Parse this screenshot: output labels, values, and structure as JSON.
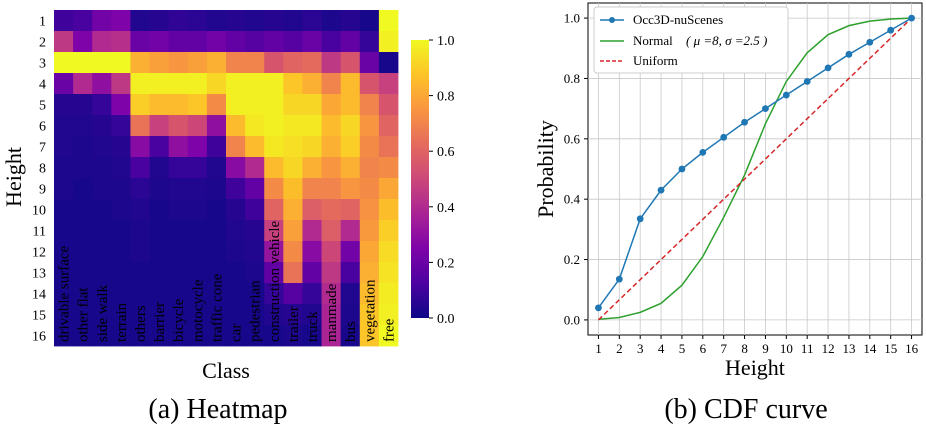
{
  "chart_data": [
    {
      "type": "heatmap",
      "caption": "(a) Heatmap",
      "xlabel": "Class",
      "ylabel": "Height",
      "y_categories": [
        "1",
        "2",
        "3",
        "4",
        "5",
        "6",
        "7",
        "8",
        "9",
        "10",
        "11",
        "12",
        "13",
        "14",
        "15",
        "16"
      ],
      "x_categories": [
        "drivable surface",
        "other flat",
        "side walk",
        "terrain",
        "others",
        "barrier",
        "bicycle",
        "motocycle",
        "traffic cone",
        "car",
        "pedestrian",
        "construction vehicle",
        "trailer",
        "truck",
        "manmade",
        "bus",
        "vegetation",
        "free"
      ],
      "colorbar": {
        "min": 0.0,
        "max": 1.0,
        "ticks": [
          "0.0",
          "0.2",
          "0.4",
          "0.6",
          "0.8",
          "1.0"
        ],
        "colormap": "plasma"
      },
      "values": [
        [
          0.1,
          0.12,
          0.22,
          0.25,
          0.04,
          0.05,
          0.07,
          0.06,
          0.04,
          0.05,
          0.04,
          0.05,
          0.04,
          0.06,
          0.03,
          0.05,
          0.02,
          1.0
        ],
        [
          0.45,
          0.25,
          0.4,
          0.42,
          0.2,
          0.22,
          0.18,
          0.18,
          0.22,
          0.18,
          0.15,
          0.18,
          0.15,
          0.2,
          0.12,
          0.18,
          0.08,
          0.98
        ],
        [
          1.0,
          1.0,
          1.0,
          1.0,
          0.82,
          0.78,
          0.75,
          0.78,
          0.82,
          0.7,
          0.7,
          0.55,
          0.6,
          0.62,
          0.45,
          0.55,
          0.2,
          0.02
        ],
        [
          0.2,
          0.4,
          0.3,
          0.45,
          0.98,
          0.98,
          0.98,
          0.98,
          0.92,
          0.98,
          0.98,
          0.98,
          0.88,
          0.82,
          0.7,
          0.85,
          0.55,
          0.48
        ],
        [
          0.05,
          0.05,
          0.08,
          0.25,
          0.9,
          0.85,
          0.85,
          0.88,
          0.72,
          0.98,
          0.98,
          0.98,
          0.92,
          0.92,
          0.8,
          0.85,
          0.7,
          0.55
        ],
        [
          0.04,
          0.04,
          0.05,
          0.08,
          0.65,
          0.48,
          0.55,
          0.5,
          0.3,
          0.85,
          0.96,
          0.98,
          0.96,
          0.96,
          0.85,
          0.92,
          0.75,
          0.6
        ],
        [
          0.04,
          0.03,
          0.04,
          0.05,
          0.28,
          0.12,
          0.3,
          0.25,
          0.1,
          0.7,
          0.85,
          0.96,
          0.94,
          0.92,
          0.82,
          0.9,
          0.72,
          0.65
        ],
        [
          0.03,
          0.03,
          0.03,
          0.04,
          0.12,
          0.04,
          0.08,
          0.08,
          0.04,
          0.28,
          0.4,
          0.85,
          0.92,
          0.82,
          0.75,
          0.82,
          0.7,
          0.72
        ],
        [
          0.03,
          0.02,
          0.03,
          0.03,
          0.06,
          0.03,
          0.04,
          0.04,
          0.03,
          0.1,
          0.18,
          0.72,
          0.86,
          0.7,
          0.7,
          0.75,
          0.72,
          0.8
        ],
        [
          0.02,
          0.02,
          0.02,
          0.03,
          0.04,
          0.02,
          0.03,
          0.03,
          0.02,
          0.05,
          0.1,
          0.6,
          0.82,
          0.58,
          0.62,
          0.6,
          0.74,
          0.86
        ],
        [
          0.02,
          0.02,
          0.02,
          0.02,
          0.03,
          0.02,
          0.02,
          0.02,
          0.02,
          0.04,
          0.05,
          0.48,
          0.78,
          0.4,
          0.58,
          0.4,
          0.76,
          0.9
        ],
        [
          0.02,
          0.02,
          0.02,
          0.02,
          0.03,
          0.02,
          0.02,
          0.02,
          0.02,
          0.03,
          0.04,
          0.32,
          0.72,
          0.28,
          0.5,
          0.22,
          0.8,
          0.93
        ],
        [
          0.02,
          0.02,
          0.02,
          0.02,
          0.02,
          0.02,
          0.02,
          0.02,
          0.02,
          0.02,
          0.03,
          0.18,
          0.65,
          0.18,
          0.45,
          0.12,
          0.82,
          0.95
        ],
        [
          0.02,
          0.02,
          0.02,
          0.02,
          0.02,
          0.02,
          0.02,
          0.02,
          0.02,
          0.02,
          0.02,
          0.08,
          0.15,
          0.08,
          0.4,
          0.04,
          0.85,
          0.97
        ],
        [
          0.02,
          0.02,
          0.02,
          0.02,
          0.02,
          0.02,
          0.02,
          0.02,
          0.02,
          0.02,
          0.02,
          0.04,
          0.05,
          0.04,
          0.38,
          0.03,
          0.88,
          0.98
        ],
        [
          0.02,
          0.02,
          0.02,
          0.02,
          0.02,
          0.02,
          0.02,
          0.02,
          0.02,
          0.02,
          0.02,
          0.02,
          0.03,
          0.02,
          0.38,
          0.02,
          0.88,
          1.0
        ]
      ]
    },
    {
      "type": "line",
      "caption": "(b) CDF curve",
      "xlabel": "Height",
      "ylabel": "Probability",
      "x": [
        1,
        2,
        3,
        4,
        5,
        6,
        7,
        8,
        9,
        10,
        11,
        12,
        13,
        14,
        15,
        16
      ],
      "xlim": [
        0.5,
        16.5
      ],
      "ylim": [
        -0.05,
        1.05
      ],
      "yticks": [
        0.0,
        0.2,
        0.4,
        0.6,
        0.8,
        1.0
      ],
      "ytick_labels": [
        "0.0",
        "0.2",
        "0.4",
        "0.6",
        "0.8",
        "1.0"
      ],
      "grid": true,
      "legend_position": "top-left",
      "series": [
        {
          "name": "Occ3D-nuScenes",
          "color": "#1f77b4",
          "style": "solid",
          "markers": true,
          "values": [
            0.04,
            0.135,
            0.335,
            0.43,
            0.5,
            0.555,
            0.605,
            0.655,
            0.7,
            0.745,
            0.79,
            0.835,
            0.88,
            0.92,
            0.96,
            1.0
          ]
        },
        {
          "name": "Normal",
          "param_text": "( μ =8,  σ =2.5 )",
          "color": "#2ca02c",
          "style": "solid",
          "markers": false,
          "values": [
            0.002,
            0.008,
            0.025,
            0.055,
            0.115,
            0.21,
            0.34,
            0.48,
            0.65,
            0.79,
            0.885,
            0.945,
            0.975,
            0.99,
            0.997,
            1.0
          ]
        },
        {
          "name": "Uniform",
          "color": "#d62728",
          "style": "dashed",
          "markers": false,
          "values": [
            0.0,
            0.0667,
            0.1333,
            0.2,
            0.2667,
            0.3333,
            0.4,
            0.4667,
            0.5333,
            0.6,
            0.6667,
            0.7333,
            0.8,
            0.8667,
            0.9333,
            1.0
          ]
        }
      ]
    }
  ]
}
